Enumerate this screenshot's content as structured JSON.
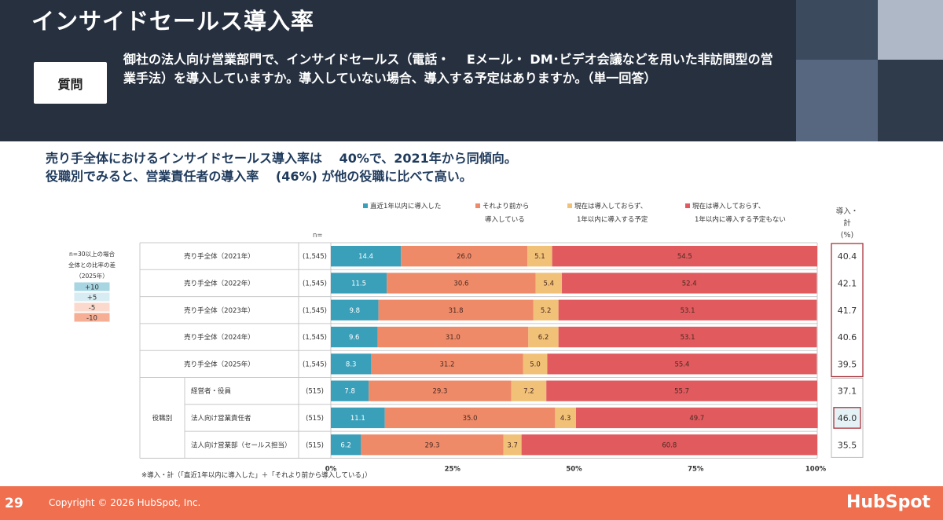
{
  "header": {
    "title": "インサイドセールス導入率",
    "question_badge": "質問",
    "question_text": "御社の法人向け営業部門で、インサイドセールス（電話・　 Eメール・ DM･ビデオ会議などを用いた非訪問型の営業手法）を導入していますか。導入していない場合、導入する予定はありますか。（単一回答）"
  },
  "summary": {
    "line1": "売り手全体におけるインサイドセールス導入率は　 40%で、2021年から同傾向。",
    "line2": "役職別でみると、営業責任者の導入率　 (46%) が他の役職に比べて高い。"
  },
  "colors": {
    "within1yr": "#3a9fb9",
    "earlier": "#ee8a68",
    "plan1yr": "#f0c177",
    "noplan": "#e05a5e",
    "highlight_plus": "#9fd0de",
    "diff_plus10": "#a8d5e2",
    "diff_plus5": "#d7edf3",
    "diff_minus5": "#fbd9cc",
    "diff_minus10": "#f6ae94"
  },
  "chart_data": {
    "type": "bar",
    "orientation": "horizontal",
    "stacked": true,
    "xlim": [
      0,
      100
    ],
    "x_ticks": [
      "0%",
      "25%",
      "50%",
      "75%",
      "100%"
    ],
    "n_header": "n=",
    "legend": [
      {
        "key": "within1yr",
        "lines": [
          "直近1年以内に導入した"
        ]
      },
      {
        "key": "earlier",
        "lines": [
          "それより前から",
          "導入している"
        ]
      },
      {
        "key": "plan1yr",
        "lines": [
          "現在は導入しておらず、",
          "1年以内に導入する予定"
        ]
      },
      {
        "key": "noplan",
        "lines": [
          "現在は導入しておらず、",
          "1年以内に導入する予定もない"
        ]
      }
    ],
    "total_header": [
      "導入・",
      "計",
      "(%)"
    ],
    "group_label": "役職別",
    "rows": [
      {
        "label": "売り手全体（2021年）",
        "n": "(1,545)",
        "values": [
          14.4,
          26.0,
          5.1,
          54.5
        ],
        "total": "40.4",
        "total_highlight": false
      },
      {
        "label": "売り手全体（2022年）",
        "n": "(1,545)",
        "values": [
          11.5,
          30.6,
          5.4,
          52.4
        ],
        "total": "42.1",
        "total_highlight": false
      },
      {
        "label": "売り手全体（2023年）",
        "n": "(1,545)",
        "values": [
          9.8,
          31.8,
          5.2,
          53.1
        ],
        "total": "41.7",
        "total_highlight": false
      },
      {
        "label": "売り手全体（2024年）",
        "n": "(1,545)",
        "values": [
          9.6,
          31.0,
          6.2,
          53.1
        ],
        "total": "40.6",
        "total_highlight": false
      },
      {
        "label": "売り手全体（2025年）",
        "n": "(1,545)",
        "values": [
          8.3,
          31.2,
          5.0,
          55.4
        ],
        "total": "39.5",
        "total_highlight": false
      },
      {
        "label": "経営者・役員",
        "n": "(515)",
        "values": [
          7.8,
          29.3,
          7.2,
          55.7
        ],
        "total": "37.1",
        "total_highlight": false
      },
      {
        "label": "法人向け営業責任者",
        "n": "(515)",
        "values": [
          11.1,
          35.0,
          4.3,
          49.7
        ],
        "total": "46.0",
        "total_highlight": true
      },
      {
        "label": "法人向け営業部（セールス担当）",
        "n": "(515)",
        "values": [
          6.2,
          29.3,
          3.7,
          60.8
        ],
        "total": "35.5",
        "total_highlight": false
      }
    ],
    "side_legend": {
      "title_lines": [
        "n=30以上の場合",
        "全体との比率の差",
        "（2025年）"
      ],
      "items": [
        {
          "label": "+10",
          "color_key": "diff_plus10"
        },
        {
          "label": "+5",
          "color_key": "diff_plus5"
        },
        {
          "label": "-5",
          "color_key": "diff_minus5"
        },
        {
          "label": "-10",
          "color_key": "diff_minus10"
        }
      ]
    },
    "footnote": "※導入・計（「直近1年以内に導入した」＋「それより前から導入している」）"
  },
  "footer": {
    "page_number": "29",
    "copyright": "Copyright © 2026 HubSpot, Inc.",
    "brand": "HubSpot"
  }
}
